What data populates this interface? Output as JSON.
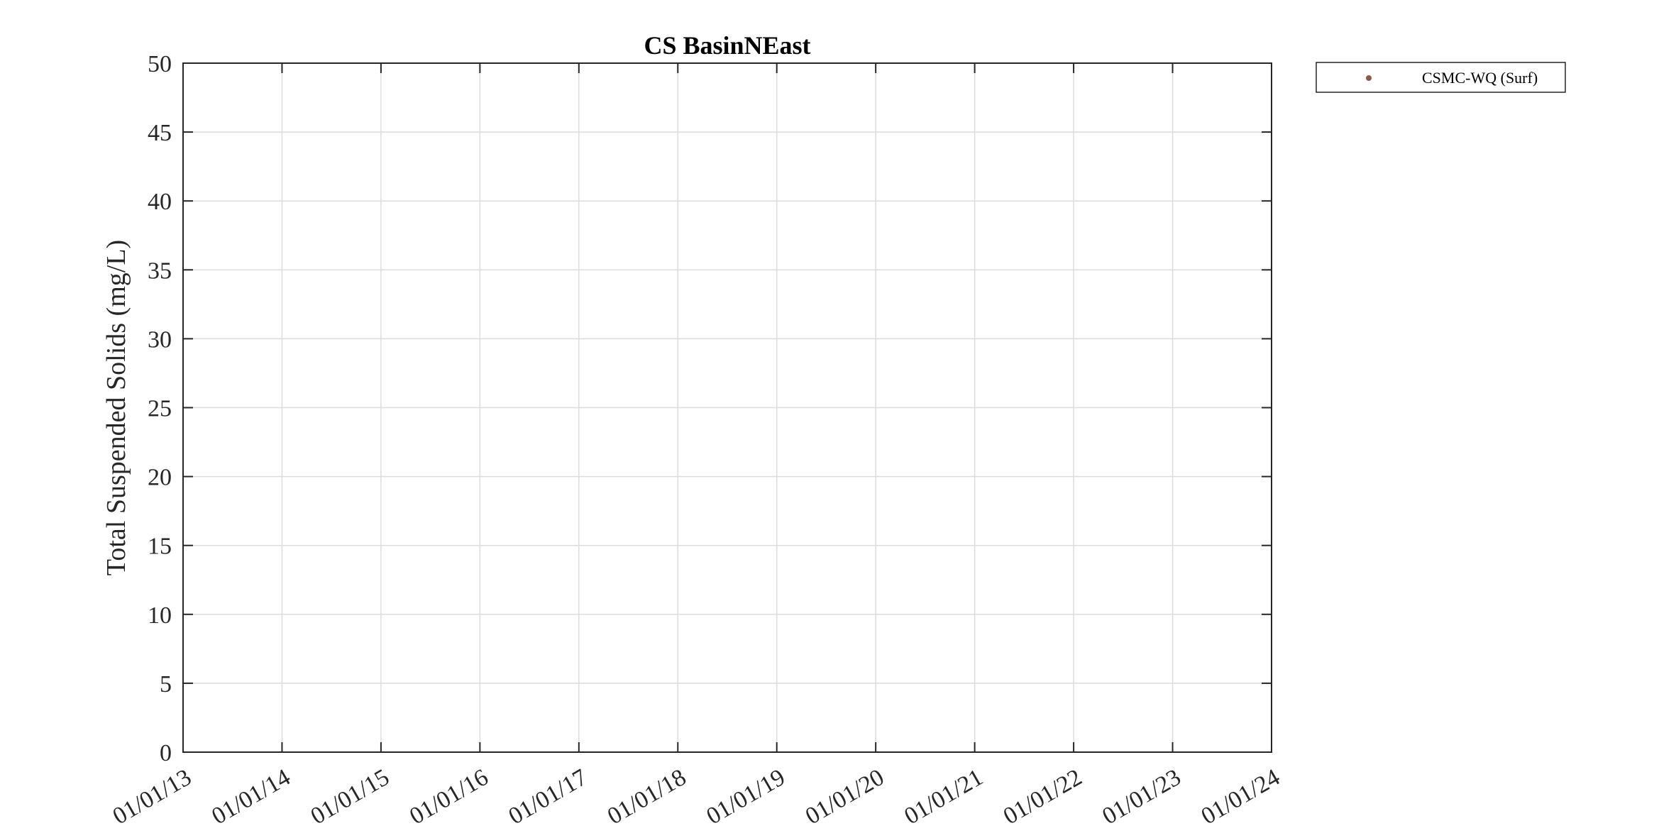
{
  "chart_data": {
    "type": "scatter",
    "title": "CS BasinNEast",
    "xlabel": "",
    "ylabel": "Total Suspended Solids (mg/L)",
    "x_ticks": [
      "01/01/13",
      "01/01/14",
      "01/01/15",
      "01/01/16",
      "01/01/17",
      "01/01/18",
      "01/01/19",
      "01/01/20",
      "01/01/21",
      "01/01/22",
      "01/01/23",
      "01/01/24"
    ],
    "y_ticks": [
      "0",
      "5",
      "10",
      "15",
      "20",
      "25",
      "30",
      "35",
      "40",
      "45",
      "50"
    ],
    "ylim": [
      0,
      50
    ],
    "xlim": [
      "01/01/13",
      "01/01/24"
    ],
    "grid": true,
    "legend_position": "outside-top-right",
    "series": [
      {
        "name": "CSMC-WQ (Surf)",
        "color": "#8c5a4a",
        "marker": "dot",
        "points": []
      }
    ]
  }
}
